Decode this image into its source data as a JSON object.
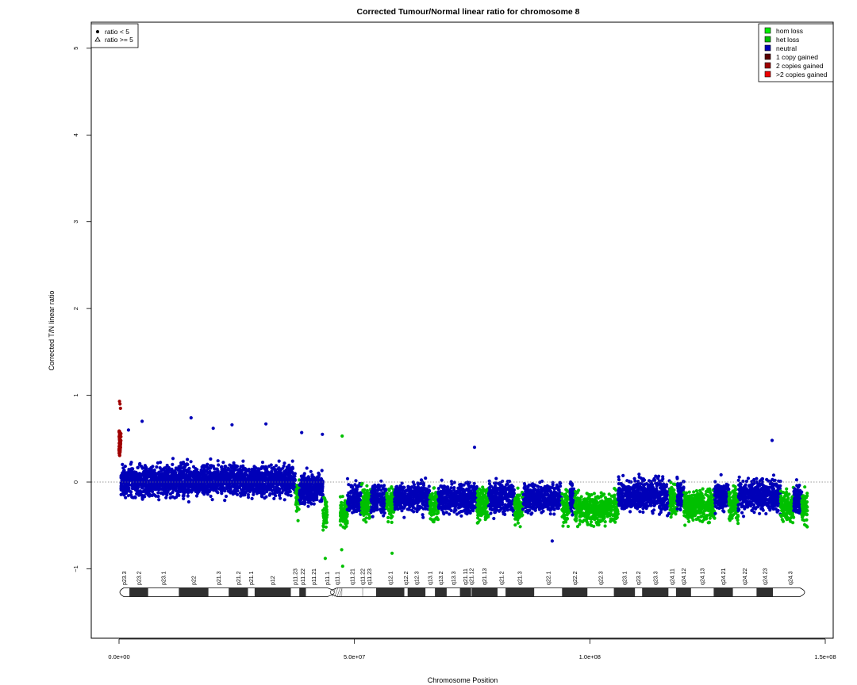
{
  "chart_data": {
    "type": "scatter",
    "title": "Corrected Tumour/Normal linear ratio for chromosome  8",
    "xlabel": "Chromosome Position",
    "ylabel": "Corrected T/N linear ratio",
    "xlim": [
      0,
      150000000
    ],
    "ylim": [
      -1.8,
      5.3
    ],
    "x_ticks": [
      {
        "value": 0,
        "label": "0.0e+00"
      },
      {
        "value": 50000000,
        "label": "5.0e+07"
      },
      {
        "value": 100000000,
        "label": "1.0e+08"
      },
      {
        "value": 150000000,
        "label": "1.5e+08"
      }
    ],
    "y_ticks": [
      {
        "value": -1,
        "label": "−1"
      },
      {
        "value": 0,
        "label": "0"
      },
      {
        "value": 1,
        "label": "1"
      },
      {
        "value": 2,
        "label": "2"
      },
      {
        "value": 3,
        "label": "3"
      },
      {
        "value": 4,
        "label": "4"
      },
      {
        "value": 5,
        "label": "5"
      }
    ],
    "reference_line": 0,
    "shape_legend": {
      "placement": "top-left",
      "entries": [
        {
          "label": "ratio < 5",
          "symbol": "dot"
        },
        {
          "label": "ratio >= 5",
          "symbol": "triangle"
        }
      ]
    },
    "state_legend": {
      "placement": "top-right",
      "entries": [
        {
          "label": "hom loss",
          "color": "#00ee00"
        },
        {
          "label": "het loss",
          "color": "#00c000"
        },
        {
          "label": "neutral",
          "color": "#0000b8"
        },
        {
          "label": "1 copy gained",
          "color": "#5a0000"
        },
        {
          "label": "2 copies gained",
          "color": "#a00000"
        },
        {
          "label": ">2 copies gained",
          "color": "#ee0000"
        }
      ]
    },
    "segments": [
      {
        "start": 0,
        "end": 400000,
        "state": "2 copies gained",
        "color": "#a00000",
        "center": 0.45,
        "spread": 0.28,
        "count": 60,
        "outliers": [
          [
            100000,
            0.93
          ],
          [
            200000,
            0.9
          ],
          [
            300000,
            0.85
          ]
        ]
      },
      {
        "start": 400000,
        "end": 37500000,
        "state": "neutral",
        "color": "#0000b8",
        "center": 0.02,
        "spread": 0.3,
        "count": 2200,
        "outliers": [
          [
            15300000,
            0.74
          ],
          [
            4900000,
            0.7
          ],
          [
            24000000,
            0.66
          ],
          [
            31200000,
            0.67
          ],
          [
            2000000,
            0.6
          ],
          [
            20000000,
            0.62
          ]
        ]
      },
      {
        "start": 37500000,
        "end": 38300000,
        "state": "het loss",
        "color": "#00c000",
        "center": -0.15,
        "spread": 0.35,
        "count": 50,
        "outliers": []
      },
      {
        "start": 38300000,
        "end": 43300000,
        "state": "neutral",
        "color": "#0000b8",
        "center": -0.08,
        "spread": 0.3,
        "count": 300,
        "outliers": [
          [
            38800000,
            0.57
          ],
          [
            43200000,
            0.55
          ]
        ]
      },
      {
        "start": 43300000,
        "end": 44200000,
        "state": "het loss",
        "color": "#00c000",
        "center": -0.35,
        "spread": 0.3,
        "count": 50,
        "outliers": [
          [
            43800000,
            -0.88
          ]
        ]
      },
      {
        "start": 47000000,
        "end": 48500000,
        "state": "het loss",
        "color": "#00c000",
        "center": -0.35,
        "spread": 0.3,
        "count": 90,
        "outliers": [
          [
            47400000,
            0.53
          ],
          [
            47300000,
            -0.78
          ],
          [
            47500000,
            -0.97
          ]
        ]
      },
      {
        "start": 48500000,
        "end": 51500000,
        "state": "neutral",
        "color": "#0000b8",
        "center": -0.2,
        "spread": 0.3,
        "count": 150,
        "outliers": []
      },
      {
        "start": 51500000,
        "end": 53500000,
        "state": "het loss",
        "color": "#00c000",
        "center": -0.25,
        "spread": 0.3,
        "count": 120,
        "outliers": []
      },
      {
        "start": 53500000,
        "end": 56800000,
        "state": "neutral",
        "color": "#0000b8",
        "center": -0.18,
        "spread": 0.3,
        "count": 170,
        "outliers": []
      },
      {
        "start": 56800000,
        "end": 58500000,
        "state": "het loss",
        "color": "#00c000",
        "center": -0.25,
        "spread": 0.3,
        "count": 100,
        "outliers": [
          [
            58000000,
            -0.82
          ]
        ]
      },
      {
        "start": 58500000,
        "end": 66000000,
        "state": "neutral",
        "color": "#0000b8",
        "center": -0.18,
        "spread": 0.3,
        "count": 380,
        "outliers": []
      },
      {
        "start": 66000000,
        "end": 67800000,
        "state": "het loss",
        "color": "#00c000",
        "center": -0.28,
        "spread": 0.3,
        "count": 100,
        "outliers": []
      },
      {
        "start": 67800000,
        "end": 76000000,
        "state": "neutral",
        "color": "#0000b8",
        "center": -0.18,
        "spread": 0.3,
        "count": 400,
        "outliers": [
          [
            75500000,
            0.4
          ]
        ]
      },
      {
        "start": 76000000,
        "end": 78500000,
        "state": "het loss",
        "color": "#00c000",
        "center": -0.25,
        "spread": 0.3,
        "count": 140,
        "outliers": []
      },
      {
        "start": 78500000,
        "end": 84000000,
        "state": "neutral",
        "color": "#0000b8",
        "center": -0.18,
        "spread": 0.3,
        "count": 280,
        "outliers": []
      },
      {
        "start": 84000000,
        "end": 85800000,
        "state": "het loss",
        "color": "#00c000",
        "center": -0.28,
        "spread": 0.3,
        "count": 100,
        "outliers": []
      },
      {
        "start": 85800000,
        "end": 94000000,
        "state": "neutral",
        "color": "#0000b8",
        "center": -0.18,
        "spread": 0.3,
        "count": 400,
        "outliers": [
          [
            92000000,
            -0.68
          ]
        ]
      },
      {
        "start": 94000000,
        "end": 95800000,
        "state": "het loss",
        "color": "#00c000",
        "center": -0.28,
        "spread": 0.3,
        "count": 100,
        "outliers": []
      },
      {
        "start": 95800000,
        "end": 96800000,
        "state": "neutral",
        "color": "#0000b8",
        "center": -0.18,
        "spread": 0.3,
        "count": 60,
        "outliers": []
      },
      {
        "start": 96800000,
        "end": 106000000,
        "state": "het loss",
        "color": "#00c000",
        "center": -0.3,
        "spread": 0.3,
        "count": 480,
        "outliers": []
      },
      {
        "start": 106000000,
        "end": 117000000,
        "state": "neutral",
        "color": "#0000b8",
        "center": -0.15,
        "spread": 0.32,
        "count": 560,
        "outliers": []
      },
      {
        "start": 117000000,
        "end": 118500000,
        "state": "het loss",
        "color": "#00c000",
        "center": -0.2,
        "spread": 0.3,
        "count": 80,
        "outliers": []
      },
      {
        "start": 118500000,
        "end": 120000000,
        "state": "neutral",
        "color": "#0000b8",
        "center": -0.15,
        "spread": 0.3,
        "count": 80,
        "outliers": []
      },
      {
        "start": 120000000,
        "end": 126500000,
        "state": "het loss",
        "color": "#00c000",
        "center": -0.28,
        "spread": 0.3,
        "count": 340,
        "outliers": []
      },
      {
        "start": 126500000,
        "end": 129500000,
        "state": "neutral",
        "color": "#0000b8",
        "center": -0.15,
        "spread": 0.3,
        "count": 160,
        "outliers": []
      },
      {
        "start": 129500000,
        "end": 131500000,
        "state": "het loss",
        "color": "#00c000",
        "center": -0.25,
        "spread": 0.3,
        "count": 110,
        "outliers": []
      },
      {
        "start": 131500000,
        "end": 140500000,
        "state": "neutral",
        "color": "#0000b8",
        "center": -0.15,
        "spread": 0.32,
        "count": 460,
        "outliers": [
          [
            138700000,
            0.48
          ]
        ]
      },
      {
        "start": 140500000,
        "end": 143300000,
        "state": "het loss",
        "color": "#00c000",
        "center": -0.28,
        "spread": 0.3,
        "count": 150,
        "outliers": []
      },
      {
        "start": 143300000,
        "end": 145000000,
        "state": "neutral",
        "color": "#0000b8",
        "center": -0.2,
        "spread": 0.3,
        "count": 90,
        "outliers": []
      },
      {
        "start": 145000000,
        "end": 146200000,
        "state": "het loss",
        "color": "#00c000",
        "center": -0.3,
        "spread": 0.3,
        "count": 70,
        "outliers": []
      }
    ],
    "ideogram": {
      "y": -1.27,
      "centromere": 45300000,
      "end": 146300000,
      "bands": [
        {
          "name": "p23.3",
          "start": 0,
          "end": 2200000,
          "stain": "gneg"
        },
        {
          "name": "p23.2",
          "start": 2200000,
          "end": 6200000,
          "stain": "gpos"
        },
        {
          "name": "p23.1",
          "start": 6200000,
          "end": 12700000,
          "stain": "gneg"
        },
        {
          "name": "p22",
          "start": 12700000,
          "end": 19000000,
          "stain": "gpos"
        },
        {
          "name": "p21.3",
          "start": 19000000,
          "end": 23300000,
          "stain": "gneg"
        },
        {
          "name": "p21.2",
          "start": 23300000,
          "end": 27400000,
          "stain": "gpos"
        },
        {
          "name": "p21.1",
          "start": 27400000,
          "end": 28800000,
          "stain": "gneg"
        },
        {
          "name": "p12",
          "start": 28800000,
          "end": 36500000,
          "stain": "gpos"
        },
        {
          "name": "p11.23",
          "start": 36500000,
          "end": 38300000,
          "stain": "gneg"
        },
        {
          "name": "p11.22",
          "start": 38300000,
          "end": 39700000,
          "stain": "gpos"
        },
        {
          "name": "p11.21",
          "start": 39700000,
          "end": 43100000,
          "stain": "gneg"
        },
        {
          "name": "p11.1",
          "start": 43100000,
          "end": 45300000,
          "stain": "acen"
        },
        {
          "name": "q11.1",
          "start": 45300000,
          "end": 47400000,
          "stain": "gvar"
        },
        {
          "name": "q11.21",
          "start": 47400000,
          "end": 51700000,
          "stain": "gneg"
        },
        {
          "name": "q11.22",
          "start": 51700000,
          "end": 51800000,
          "stain": "gpos"
        },
        {
          "name": "q11.23",
          "start": 51800000,
          "end": 54600000,
          "stain": "gneg"
        },
        {
          "name": "q12.1",
          "start": 54600000,
          "end": 60600000,
          "stain": "gpos"
        },
        {
          "name": "q12.2",
          "start": 60600000,
          "end": 61300000,
          "stain": "gneg"
        },
        {
          "name": "q12.3",
          "start": 61300000,
          "end": 65100000,
          "stain": "gpos"
        },
        {
          "name": "q13.1",
          "start": 65100000,
          "end": 67100000,
          "stain": "gneg"
        },
        {
          "name": "q13.2",
          "start": 67100000,
          "end": 69600000,
          "stain": "gpos"
        },
        {
          "name": "q13.3",
          "start": 69600000,
          "end": 72400000,
          "stain": "gneg"
        },
        {
          "name": "q21.11",
          "start": 72400000,
          "end": 74800000,
          "stain": "gpos"
        },
        {
          "name": "q21.12",
          "start": 74800000,
          "end": 74900000,
          "stain": "gneg"
        },
        {
          "name": "q21.13",
          "start": 74900000,
          "end": 80400000,
          "stain": "gpos"
        },
        {
          "name": "q21.2",
          "start": 80400000,
          "end": 82100000,
          "stain": "gneg"
        },
        {
          "name": "q21.3",
          "start": 82100000,
          "end": 88200000,
          "stain": "gpos"
        },
        {
          "name": "q22.1",
          "start": 88200000,
          "end": 94100000,
          "stain": "gneg"
        },
        {
          "name": "q22.2",
          "start": 94100000,
          "end": 99500000,
          "stain": "gpos"
        },
        {
          "name": "q22.3",
          "start": 99500000,
          "end": 105100000,
          "stain": "gneg"
        },
        {
          "name": "q23.1",
          "start": 105100000,
          "end": 109600000,
          "stain": "gpos"
        },
        {
          "name": "q23.2",
          "start": 109600000,
          "end": 111100000,
          "stain": "gneg"
        },
        {
          "name": "q23.3",
          "start": 111100000,
          "end": 116700000,
          "stain": "gpos"
        },
        {
          "name": "q24.11",
          "start": 116700000,
          "end": 118300000,
          "stain": "gneg"
        },
        {
          "name": "q24.12",
          "start": 118300000,
          "end": 121500000,
          "stain": "gpos"
        },
        {
          "name": "q24.13",
          "start": 121500000,
          "end": 126300000,
          "stain": "gneg"
        },
        {
          "name": "q24.21",
          "start": 126300000,
          "end": 130400000,
          "stain": "gpos"
        },
        {
          "name": "q24.22",
          "start": 130400000,
          "end": 135400000,
          "stain": "gneg"
        },
        {
          "name": "q24.23",
          "start": 135400000,
          "end": 138900000,
          "stain": "gpos"
        },
        {
          "name": "q24.3",
          "start": 138900000,
          "end": 146300000,
          "stain": "gneg"
        }
      ]
    }
  }
}
